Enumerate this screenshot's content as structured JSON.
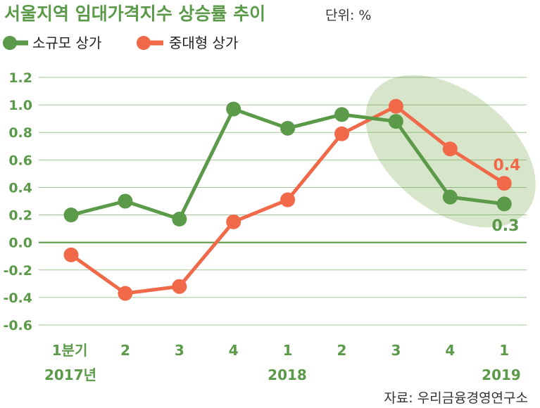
{
  "chart_data": {
    "type": "line",
    "title": "서울지역 임대가격지수 상승률 추이",
    "unit_label": "단위: %",
    "source": "자료: 우리금융경영연구소",
    "categories": [
      "1분기",
      "2",
      "3",
      "4",
      "1",
      "2",
      "3",
      "4",
      "1"
    ],
    "year_labels": [
      "2017년",
      "2018",
      "2019"
    ],
    "yticks": [
      "1.2",
      "1.0",
      "0.8",
      "0.6",
      "0.4",
      "0.2",
      "0.0",
      "-0.2",
      "-0.4",
      "-0.6"
    ],
    "ylim": [
      -0.6,
      1.2
    ],
    "grid": true,
    "legend_position": "top-left",
    "series": [
      {
        "name": "소규모 상가",
        "color": "#5a9a48",
        "values": [
          0.2,
          0.3,
          0.17,
          0.97,
          0.83,
          0.93,
          0.88,
          0.33,
          0.28
        ]
      },
      {
        "name": "중대형 상가",
        "color": "#f06a4a",
        "values": [
          -0.09,
          -0.37,
          -0.32,
          0.15,
          0.31,
          0.79,
          0.99,
          0.68,
          0.43
        ]
      }
    ],
    "annotations": {
      "orange_last": "0.4",
      "green_last": "0.3"
    },
    "highlight_color": "#c9dcb8"
  }
}
